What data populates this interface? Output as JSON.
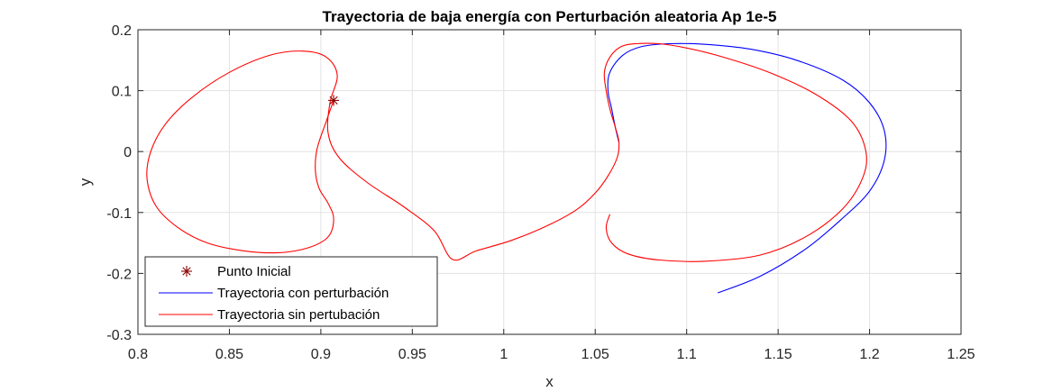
{
  "chart_data": {
    "type": "line",
    "title": "Trayectoria de baja energía con Perturbación aleatoria Ap 1e-5",
    "xlabel": "x",
    "ylabel": "y",
    "xlim": [
      0.8,
      1.25
    ],
    "ylim": [
      -0.3,
      0.2
    ],
    "xticks": [
      0.8,
      0.85,
      0.9,
      0.95,
      1,
      1.05,
      1.1,
      1.15,
      1.2,
      1.25
    ],
    "xtick_labels": [
      "0.8",
      "0.85",
      "0.9",
      "0.95",
      "1",
      "1.05",
      "1.1",
      "1.15",
      "1.2",
      "1.25"
    ],
    "yticks": [
      0.2,
      0.1,
      0,
      -0.1,
      -0.2,
      -0.3
    ],
    "ytick_labels": [
      "0.2",
      "0.1",
      "0",
      "-0.1",
      "-0.2",
      "-0.3"
    ],
    "grid": true,
    "legend_position": "bottom-left",
    "legend": [
      {
        "label": "Punto Inicial",
        "kind": "marker",
        "color": "#8b0000"
      },
      {
        "label": "Trayectoria con perturbación",
        "kind": "line",
        "color": "#0000ff"
      },
      {
        "label": "Trayectoria sin pertubación",
        "kind": "line",
        "color": "#ff0000"
      }
    ],
    "initial_point": {
      "x": 0.907,
      "y": 0.084
    },
    "series": [
      {
        "name": "Trayectoria sin pertubación",
        "color": "#ff0000",
        "x": [
          0.907,
          0.903,
          0.898,
          0.897,
          0.899,
          0.904,
          0.907,
          0.904,
          0.893,
          0.877,
          0.858,
          0.838,
          0.822,
          0.81,
          0.805,
          0.807,
          0.815,
          0.83,
          0.85,
          0.872,
          0.89,
          0.903,
          0.909,
          0.905,
          0.904,
          0.91,
          0.925,
          0.945,
          0.962,
          0.972,
          0.985,
          1.005,
          1.025,
          1.04,
          1.05,
          1.057,
          1.062,
          1.063,
          1.061,
          1.058,
          1.056,
          1.055,
          1.058,
          1.064,
          1.072,
          1.085,
          1.1,
          1.12,
          1.145,
          1.17,
          1.19,
          1.198,
          1.196,
          1.185,
          1.165,
          1.14,
          1.11,
          1.085,
          1.068,
          1.059,
          1.056,
          1.058
        ],
        "y": [
          0.084,
          0.05,
          0.005,
          -0.03,
          -0.06,
          -0.085,
          -0.11,
          -0.14,
          -0.158,
          -0.166,
          -0.163,
          -0.15,
          -0.125,
          -0.09,
          -0.045,
          0.0,
          0.045,
          0.09,
          0.13,
          0.158,
          0.165,
          0.155,
          0.125,
          0.08,
          0.03,
          -0.01,
          -0.05,
          -0.09,
          -0.13,
          -0.177,
          -0.163,
          -0.145,
          -0.12,
          -0.095,
          -0.068,
          -0.04,
          -0.01,
          0.015,
          0.04,
          0.07,
          0.1,
          0.13,
          0.155,
          0.172,
          0.177,
          0.177,
          0.17,
          0.155,
          0.13,
          0.095,
          0.05,
          0.0,
          -0.045,
          -0.095,
          -0.14,
          -0.17,
          -0.18,
          -0.178,
          -0.168,
          -0.15,
          -0.125,
          -0.103
        ]
      },
      {
        "name": "Trayectoria con perturbación",
        "color": "#0000ff",
        "x": [
          1.063,
          1.061,
          1.059,
          1.057,
          1.058,
          1.065,
          1.075,
          1.09,
          1.11,
          1.135,
          1.16,
          1.185,
          1.2,
          1.208,
          1.208,
          1.2,
          1.185,
          1.165,
          1.14,
          1.117
        ],
        "y": [
          0.015,
          0.04,
          0.07,
          0.1,
          0.13,
          0.158,
          0.172,
          0.177,
          0.176,
          0.168,
          0.15,
          0.118,
          0.08,
          0.035,
          -0.015,
          -0.065,
          -0.11,
          -0.16,
          -0.205,
          -0.232
        ]
      }
    ]
  }
}
